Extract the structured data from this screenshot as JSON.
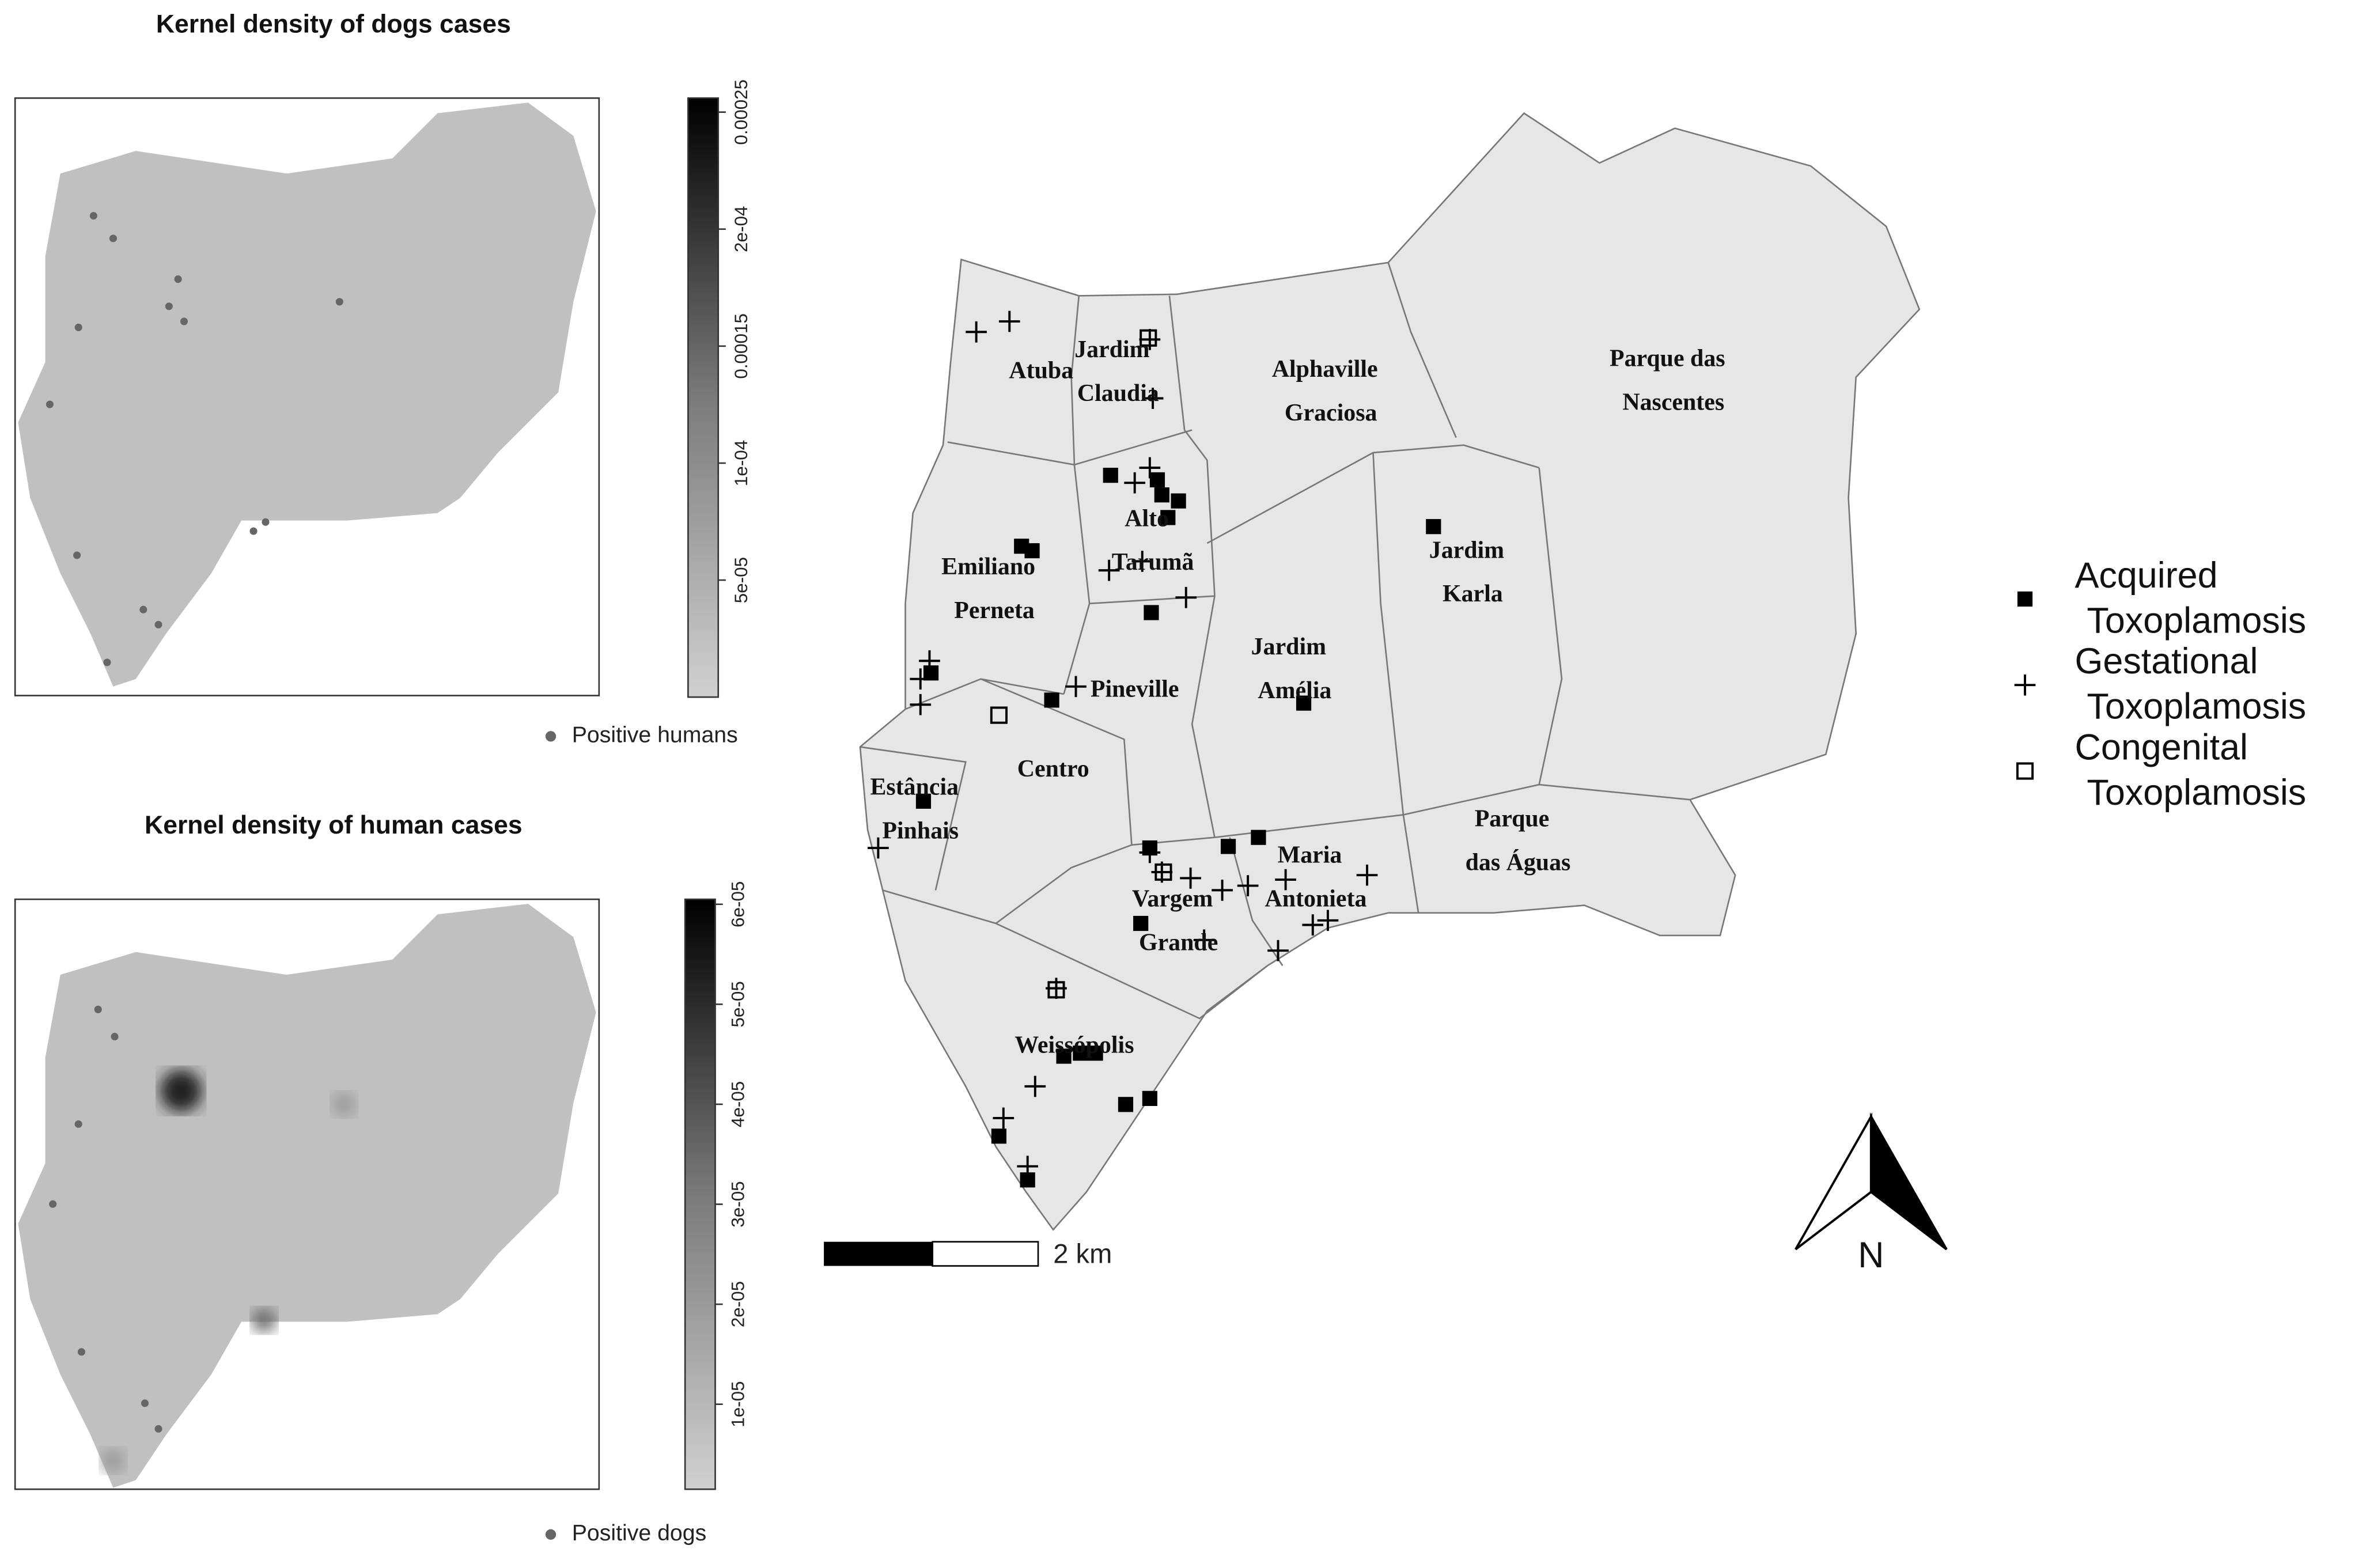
{
  "panels": [
    {
      "title": "Kernel density of dogs cases",
      "legend": "Positive humans",
      "colorbar": {
        "range": [
          0,
          0.000256
        ],
        "ticks": [
          {
            "value": 5e-05,
            "label": "5e-05"
          },
          {
            "value": 0.0001,
            "label": "1e-04"
          },
          {
            "value": 0.00015,
            "label": "0.00015"
          },
          {
            "value": 0.0002,
            "label": "2e-04"
          },
          {
            "value": 0.00025,
            "label": "0.00025"
          }
        ]
      }
    },
    {
      "title": "Kernel density of human cases",
      "legend": "Positive dogs",
      "colorbar": {
        "range": [
          1.5e-06,
          6.05e-05
        ],
        "ticks": [
          {
            "value": 1e-05,
            "label": "1e-05"
          },
          {
            "value": 2e-05,
            "label": "2e-05"
          },
          {
            "value": 3e-05,
            "label": "3e-05"
          },
          {
            "value": 4e-05,
            "label": "4e-05"
          },
          {
            "value": 5e-05,
            "label": "5e-05"
          },
          {
            "value": 6e-05,
            "label": "6e-05"
          }
        ]
      }
    }
  ],
  "map": {
    "neighborhoods": [
      [
        "Atuba"
      ],
      [
        "Jardim",
        "Claudia"
      ],
      [
        "Alphaville",
        "Graciosa"
      ],
      [
        "Parque das",
        "Nascentes"
      ],
      [
        "Alto",
        "Tarumã"
      ],
      [
        "Jardim",
        "Karla"
      ],
      [
        "Emiliano",
        "Perneta"
      ],
      [
        "Jardim",
        "Amélia"
      ],
      [
        "Pineville"
      ],
      [
        "Centro"
      ],
      [
        "Estância",
        "Pinhais"
      ],
      [
        "Parque",
        "das Águas"
      ],
      [
        "Maria",
        "Antonieta"
      ],
      [
        "Vargem",
        "Grande"
      ],
      [
        "Weissópolis"
      ]
    ],
    "legend": [
      [
        "Acquired",
        "Toxoplamosis"
      ],
      [
        "Gestational",
        "Toxoplamosis"
      ],
      [
        "Congenital",
        "Toxoplamosis"
      ]
    ],
    "scale_label": "2 km",
    "north_label": "N"
  }
}
